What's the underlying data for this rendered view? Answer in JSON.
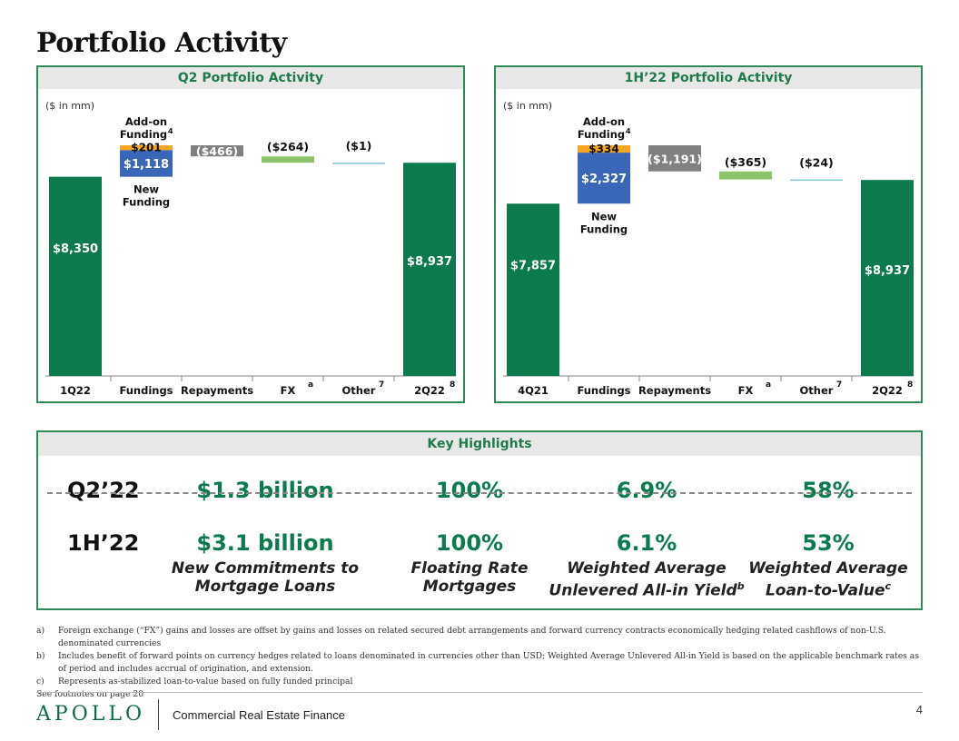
{
  "page": {
    "title": "Portfolio Activity",
    "page_number": "4",
    "logo_text": "APOLLO",
    "brand_subtitle": "Commercial Real Estate Finance",
    "see_footnotes": "See footnotes on page 20"
  },
  "colors": {
    "green": "#0d7a4e",
    "blue": "#3a66b8",
    "orange": "#f5a623",
    "gray": "#808080",
    "light_green": "#8dc46b",
    "teal_line": "#7fc4d9",
    "accent": "#2e8b57"
  },
  "chart_data": [
    {
      "type": "bar",
      "subtype": "waterfall",
      "title": "Q2 Portfolio Activity",
      "unit_label": "($ in mm)",
      "categories": [
        "1Q22",
        "Fundings",
        "Repayments",
        "FX",
        "Other",
        "2Q22"
      ],
      "category_superscripts": [
        "",
        "",
        "",
        "a",
        "7",
        "8"
      ],
      "start": 8350,
      "end": 8937,
      "funding_new": 1118,
      "funding_addon": 201,
      "repayments": -466,
      "fx": -264,
      "other": -1,
      "labels": {
        "start": "$8,350",
        "funding_new": "$1,118",
        "funding_addon": "$201",
        "repayments": "($466)",
        "fx": "($264)",
        "other": "($1)",
        "end": "$8,937",
        "addon_title": "Add-on",
        "addon_title2": "Funding",
        "addon_sup": "4",
        "new_title": "New",
        "new_title2": "Funding"
      }
    },
    {
      "type": "bar",
      "subtype": "waterfall",
      "title": "1H’22 Portfolio Activity",
      "unit_label": "($ in mm)",
      "categories": [
        "4Q21",
        "Fundings",
        "Repayments",
        "FX",
        "Other",
        "2Q22"
      ],
      "category_superscripts": [
        "",
        "",
        "",
        "a",
        "7",
        "8"
      ],
      "start": 7857,
      "end": 8937,
      "funding_new": 2327,
      "funding_addon": 334,
      "repayments": -1191,
      "fx": -365,
      "other": -24,
      "labels": {
        "start": "$7,857",
        "funding_new": "$2,327",
        "funding_addon": "$334",
        "repayments": "($1,191)",
        "fx": "($365)",
        "other": "($24)",
        "end": "$8,937",
        "addon_title": "Add-on",
        "addon_title2": "Funding",
        "addon_sup": "4",
        "new_title": "New",
        "new_title2": "Funding"
      }
    }
  ],
  "highlights": {
    "title": "Key Highlights",
    "rows": [
      {
        "period": "Q2’22",
        "commitments": "$1.3 billion",
        "floating": "100%",
        "yield": "6.9%",
        "ltv": "58%"
      },
      {
        "period": "1H’22",
        "commitments": "$3.1 billion",
        "floating": "100%",
        "yield": "6.1%",
        "ltv": "53%"
      }
    ],
    "captions": {
      "commitments_1": "New Commitments to",
      "commitments_2": "Mortgage Loans",
      "floating_1": "Floating Rate",
      "floating_2": "Mortgages",
      "yield_1": "Weighted Average",
      "yield_2": "Unlevered All-in Yield",
      "yield_sup": "b",
      "ltv_1": "Weighted Average",
      "ltv_2": "Loan-to-Value",
      "ltv_sup": "c"
    }
  },
  "footnotes": [
    {
      "key": "a)",
      "text": "Foreign exchange (“FX”) gains and losses are offset by gains and losses on related secured debt arrangements and forward currency contracts economically hedging related cashflows of non-U.S. denominated currencies"
    },
    {
      "key": "b)",
      "text": "Includes benefit of forward points on currency hedges related to loans denominated in currencies other than USD; Weighted Average Unlevered All-in Yield is based on the applicable benchmark rates as of period and includes accrual of origination, and extension."
    },
    {
      "key": "c)",
      "text": "Represents as-stabilized loan-to-value based on fully funded principal"
    }
  ]
}
